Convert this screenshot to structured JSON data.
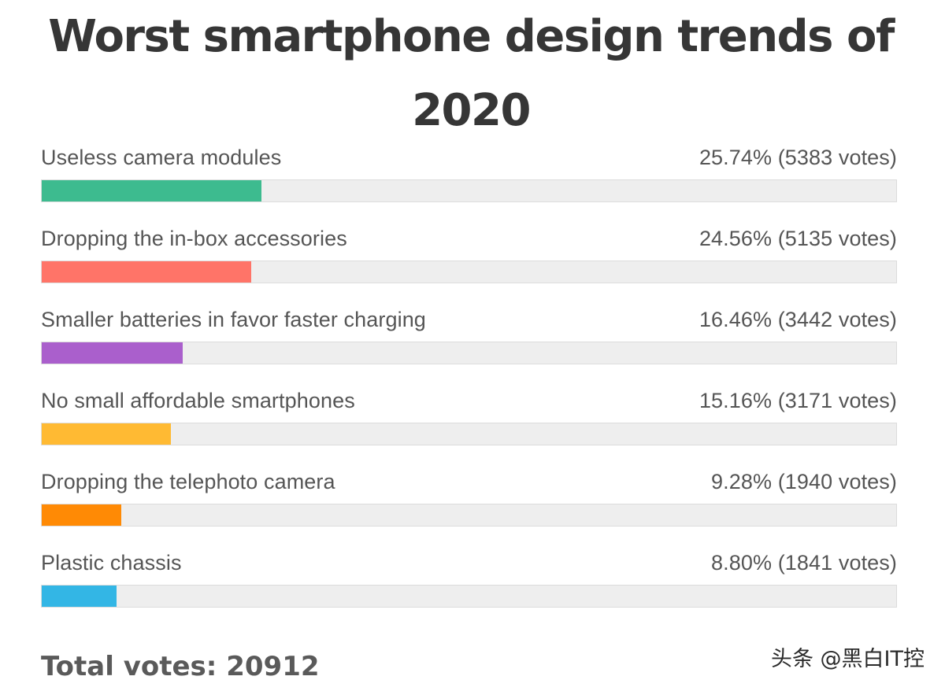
{
  "chart_data": {
    "type": "bar",
    "orientation": "horizontal",
    "title": "Worst smartphone design trends of 2020",
    "categories": [
      "Useless camera modules",
      "Dropping the in-box accessories",
      "Smaller batteries in favor faster charging",
      "No small affordable smartphones",
      "Dropping the telephoto camera",
      "Plastic chassis"
    ],
    "series": [
      {
        "name": "percent",
        "values": [
          25.74,
          24.56,
          16.46,
          15.16,
          9.28,
          8.8
        ]
      },
      {
        "name": "votes",
        "values": [
          5383,
          5135,
          3442,
          3171,
          1940,
          1841
        ]
      }
    ],
    "bars": [
      {
        "label": "Useless camera modules",
        "percent": 25.74,
        "result_text": "25.74% (5383 votes)",
        "color": "#3dbb8f"
      },
      {
        "label": "Dropping the in-box accessories",
        "percent": 24.56,
        "result_text": "24.56% (5135 votes)",
        "color": "#ff7468"
      },
      {
        "label": "Smaller batteries in favor faster charging",
        "percent": 16.46,
        "result_text": "16.46% (3442 votes)",
        "color": "#aa5fcc"
      },
      {
        "label": "No small affordable smartphones",
        "percent": 15.16,
        "result_text": "15.16% (3171 votes)",
        "color": "#ffba33"
      },
      {
        "label": "Dropping the telephoto camera",
        "percent": 9.28,
        "result_text": "9.28% (1940 votes)",
        "color": "#ff8a05"
      },
      {
        "label": "Plastic chassis",
        "percent": 8.8,
        "result_text": "8.80% (1841 votes)",
        "color": "#33b6e5"
      }
    ],
    "xlim": [
      0,
      100
    ],
    "total_votes_text": "Total votes: 20912"
  },
  "watermark": "头条 @黑白IT控"
}
